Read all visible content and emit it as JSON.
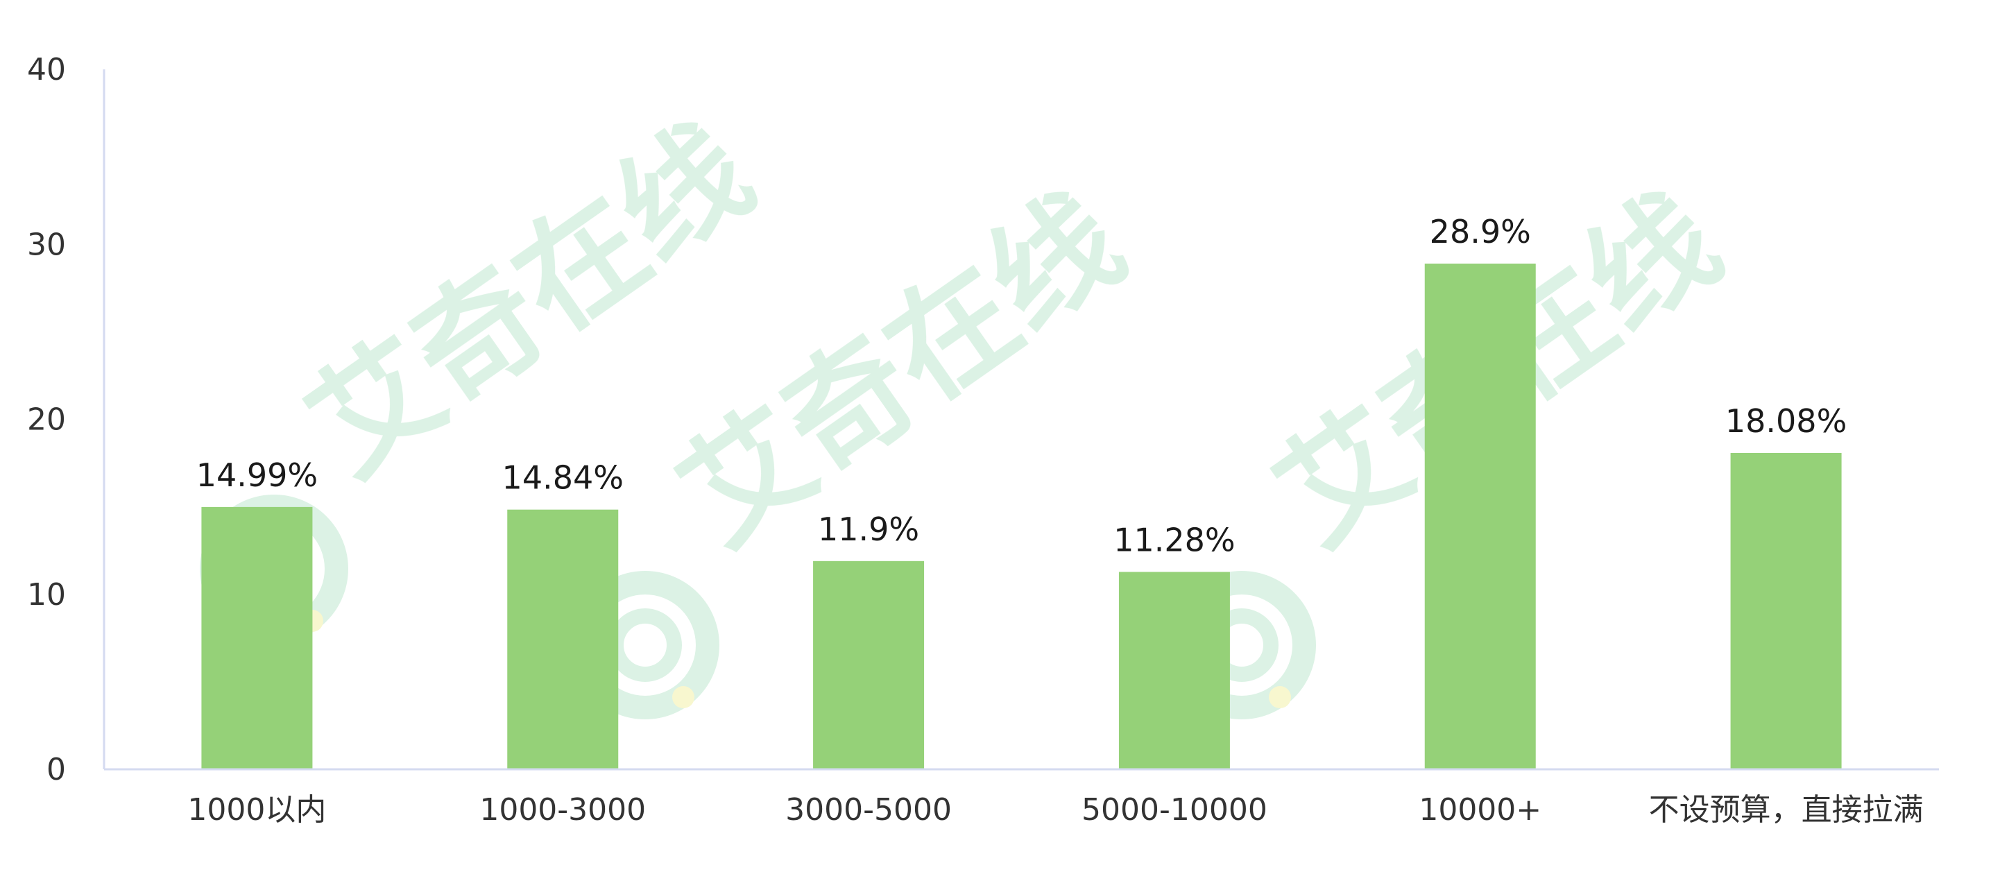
{
  "chart_data": {
    "type": "bar",
    "categories": [
      "1000以内",
      "1000-3000",
      "3000-5000",
      "5000-10000",
      "10000+",
      "不设预算，直接拉满"
    ],
    "values": [
      14.99,
      14.84,
      11.9,
      11.28,
      28.9,
      18.08
    ],
    "value_labels": [
      "14.99%",
      "14.84%",
      "11.9%",
      "11.28%",
      "28.9%",
      "18.08%"
    ],
    "y_ticks": [
      0,
      10,
      20,
      30,
      40
    ],
    "ylim": [
      0,
      40
    ],
    "grid": false,
    "legend": "none",
    "bar_color": "#95d178",
    "axis_color": "#d4daf0"
  },
  "watermark": {
    "text": "艾奇在线",
    "color": "#bfe8cf"
  }
}
